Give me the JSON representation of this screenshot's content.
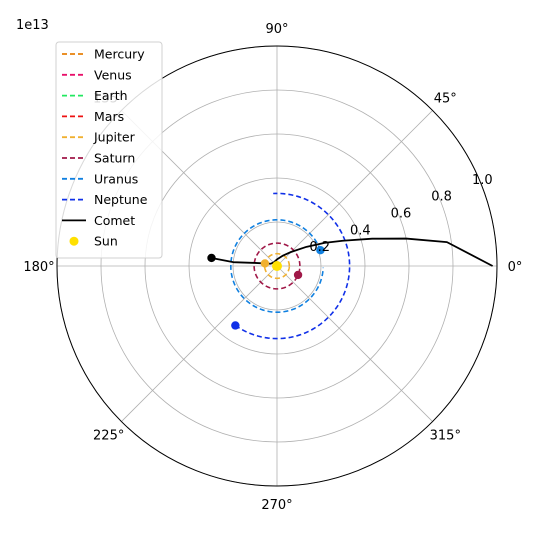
{
  "chart_data": {
    "type": "polar-line",
    "title": "",
    "offset_label": "1e13",
    "angle_ticks": [
      "0°",
      "45°",
      "90°",
      "135°",
      "180°",
      "225°",
      "270°",
      "315°"
    ],
    "angle_tick_values_deg": [
      0,
      45,
      90,
      135,
      180,
      225,
      270,
      315
    ],
    "radial_ticks": [
      "0.2",
      "0.4",
      "0.6",
      "0.8",
      "1.0"
    ],
    "radial_tick_values": [
      0.2,
      0.4,
      0.6,
      0.8,
      1.0
    ],
    "radial_max": 1.0,
    "grid": true,
    "legend_position": "upper-left",
    "series": [
      {
        "name": "Mercury",
        "style": "dashed",
        "color": "#e8800a",
        "orbit_radius": 0.0042,
        "marker_deg": null
      },
      {
        "name": "Venus",
        "style": "dashed",
        "color": "#e8106a",
        "orbit_radius": 0.0077,
        "marker_deg": null
      },
      {
        "name": "Earth",
        "style": "dashed",
        "color": "#22e860",
        "orbit_radius": 0.011,
        "marker_deg": null
      },
      {
        "name": "Mars",
        "style": "dashed",
        "color": "#ee1111",
        "orbit_radius": 0.017,
        "marker_deg": null
      },
      {
        "name": "Jupiter",
        "style": "dashed",
        "color": "#f0b030",
        "orbit_radius": 0.056,
        "start_deg": 0,
        "end_deg": 360,
        "marker_deg": 168
      },
      {
        "name": "Saturn",
        "style": "dashed",
        "color": "#a01848",
        "orbit_radius": 0.104,
        "start_deg": 0,
        "end_deg": 360,
        "marker_deg": 337
      },
      {
        "name": "Uranus",
        "style": "dashed",
        "color": "#1080e0",
        "orbit_radius": 0.21,
        "start_deg": 20,
        "end_deg": 359,
        "marker_deg": 20
      },
      {
        "name": "Neptune",
        "style": "dashed",
        "color": "#1030e8",
        "orbit_radius": 0.33,
        "start_deg": 235,
        "end_deg": 453,
        "marker_deg": 235
      },
      {
        "name": "Comet",
        "style": "solid",
        "color": "#000000",
        "points": [
          [
            0,
            0.98
          ],
          [
            8,
            0.78
          ],
          [
            12,
            0.6
          ],
          [
            16,
            0.45
          ],
          [
            21,
            0.32
          ],
          [
            26,
            0.24
          ],
          [
            33,
            0.16
          ],
          [
            45,
            0.09
          ],
          [
            60,
            0.055
          ],
          [
            90,
            0.03
          ],
          [
            130,
            0.022
          ],
          [
            160,
            0.03
          ],
          [
            172,
            0.1
          ],
          [
            175,
            0.2
          ],
          [
            173,
            0.3
          ]
        ],
        "marker_deg": 173,
        "marker_r": 0.3
      },
      {
        "name": "Sun",
        "style": "marker",
        "color": "#ffe000"
      }
    ]
  }
}
